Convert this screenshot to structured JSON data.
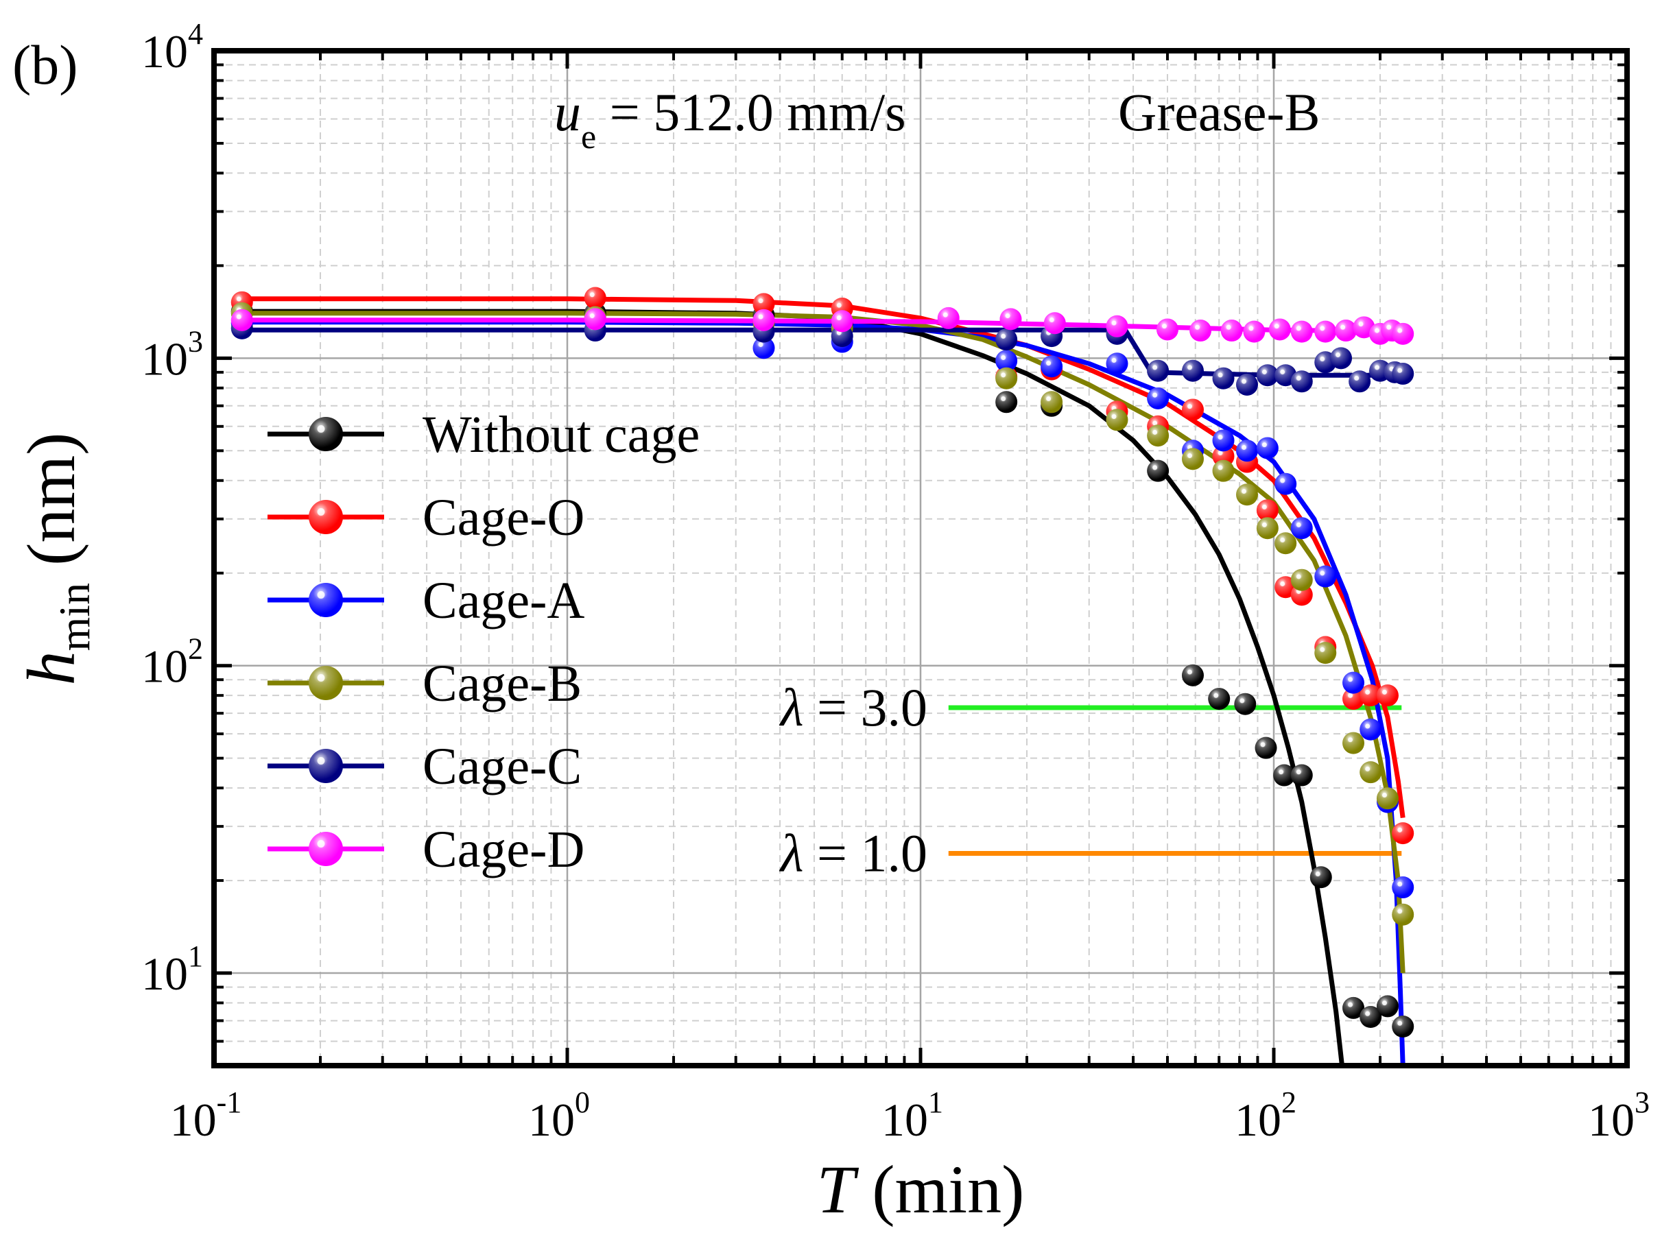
{
  "chart_data": {
    "type": "scatter",
    "panel_label": "(b)",
    "title": "",
    "annotations": {
      "speed_var": "u",
      "speed_sub": "e",
      "speed_text": " = 512.0 mm/s",
      "grease": "Grease-B",
      "lambda_symbol": "λ",
      "lambda_3_text": " = 3.0",
      "lambda_1_text": " = 1.0"
    },
    "xlabel": {
      "var": "T",
      "unit": " (min)"
    },
    "ylabel": {
      "var": "h",
      "sub": "min",
      "unit": " (nm)"
    },
    "x_scale": "log",
    "y_scale": "log",
    "xlim": [
      0.1,
      1000
    ],
    "ylim": [
      5,
      10000
    ],
    "grid": true,
    "legend_position": "center-left",
    "x_ticks": [
      {
        "base": "10",
        "exp": "-1"
      },
      {
        "base": "10",
        "exp": "0"
      },
      {
        "base": "10",
        "exp": "1"
      },
      {
        "base": "10",
        "exp": "2"
      },
      {
        "base": "10",
        "exp": "3"
      }
    ],
    "y_ticks": [
      {
        "base": "10",
        "exp": "1"
      },
      {
        "base": "10",
        "exp": "2"
      },
      {
        "base": "10",
        "exp": "3"
      },
      {
        "base": "10",
        "exp": "4"
      }
    ],
    "reference_lines": [
      {
        "name": "lambda-3",
        "y": 73,
        "x_range": [
          12,
          230
        ],
        "color": "#22ee22"
      },
      {
        "name": "lambda-1",
        "y": 24.5,
        "x_range": [
          12,
          230
        ],
        "color": "#ff8800"
      }
    ],
    "series": [
      {
        "name": "Without cage",
        "color": "#000000",
        "points": [
          [
            0.12,
            1420
          ],
          [
            1.2,
            1400
          ],
          [
            3.6,
            1380
          ],
          [
            6,
            1300
          ],
          [
            17.5,
            720
          ],
          [
            23.5,
            700
          ],
          [
            47,
            430
          ],
          [
            59,
            93
          ],
          [
            70,
            78
          ],
          [
            83,
            75
          ],
          [
            95,
            54
          ],
          [
            107,
            44
          ],
          [
            120,
            44
          ],
          [
            136,
            20.5
          ],
          [
            168,
            7.7
          ],
          [
            188,
            7.2
          ],
          [
            210,
            7.8
          ],
          [
            232,
            6.7
          ]
        ],
        "fit": [
          [
            0.12,
            1420
          ],
          [
            1,
            1420
          ],
          [
            3,
            1400
          ],
          [
            6,
            1350
          ],
          [
            10,
            1200
          ],
          [
            15,
            1020
          ],
          [
            20,
            890
          ],
          [
            30,
            700
          ],
          [
            40,
            540
          ],
          [
            50,
            410
          ],
          [
            60,
            310
          ],
          [
            70,
            230
          ],
          [
            80,
            165
          ],
          [
            90,
            115
          ],
          [
            100,
            80
          ],
          [
            110,
            54
          ],
          [
            120,
            36
          ],
          [
            130,
            22
          ],
          [
            140,
            13
          ],
          [
            150,
            7.5
          ],
          [
            156,
            5
          ]
        ]
      },
      {
        "name": "Cage-O",
        "color": "#ff0000",
        "points": [
          [
            0.12,
            1520
          ],
          [
            1.2,
            1570
          ],
          [
            3.6,
            1500
          ],
          [
            6,
            1450
          ],
          [
            17.5,
            870
          ],
          [
            23.5,
            920
          ],
          [
            36,
            670
          ],
          [
            47,
            600
          ],
          [
            59,
            680
          ],
          [
            72,
            480
          ],
          [
            84,
            460
          ],
          [
            96,
            320
          ],
          [
            108,
            180
          ],
          [
            120,
            170
          ],
          [
            140,
            115
          ],
          [
            168,
            78
          ],
          [
            188,
            80
          ],
          [
            210,
            80
          ],
          [
            232,
            28.5
          ]
        ],
        "fit": [
          [
            0.12,
            1560
          ],
          [
            1,
            1560
          ],
          [
            3,
            1540
          ],
          [
            6,
            1480
          ],
          [
            10,
            1350
          ],
          [
            15,
            1200
          ],
          [
            20,
            1100
          ],
          [
            30,
            920
          ],
          [
            50,
            710
          ],
          [
            80,
            500
          ],
          [
            100,
            400
          ],
          [
            130,
            260
          ],
          [
            160,
            160
          ],
          [
            190,
            100
          ],
          [
            210,
            68
          ],
          [
            225,
            42
          ],
          [
            232,
            32
          ]
        ]
      },
      {
        "name": "Cage-A",
        "color": "#0000ff",
        "points": [
          [
            0.12,
            1300
          ],
          [
            1.2,
            1240
          ],
          [
            3.6,
            1080
          ],
          [
            6,
            1130
          ],
          [
            17.5,
            980
          ],
          [
            23.5,
            940
          ],
          [
            36,
            960
          ],
          [
            47,
            740
          ],
          [
            59,
            500
          ],
          [
            72,
            540
          ],
          [
            84,
            500
          ],
          [
            96,
            510
          ],
          [
            108,
            390
          ],
          [
            120,
            280
          ],
          [
            140,
            195
          ],
          [
            168,
            88
          ],
          [
            188,
            62
          ],
          [
            210,
            36
          ],
          [
            232,
            19
          ]
        ],
        "fit": [
          [
            0.12,
            1310
          ],
          [
            1,
            1310
          ],
          [
            3,
            1300
          ],
          [
            6,
            1280
          ],
          [
            10,
            1240
          ],
          [
            15,
            1170
          ],
          [
            20,
            1100
          ],
          [
            30,
            960
          ],
          [
            50,
            760
          ],
          [
            80,
            560
          ],
          [
            100,
            460
          ],
          [
            130,
            300
          ],
          [
            160,
            170
          ],
          [
            190,
            90
          ],
          [
            210,
            50
          ],
          [
            222,
            20
          ],
          [
            228,
            9
          ],
          [
            232,
            5
          ]
        ]
      },
      {
        "name": "Cage-B",
        "color": "#808000",
        "points": [
          [
            0.12,
            1400
          ],
          [
            1.2,
            1360
          ],
          [
            3.6,
            1300
          ],
          [
            6,
            1250
          ],
          [
            17.5,
            860
          ],
          [
            23.5,
            720
          ],
          [
            36,
            630
          ],
          [
            47,
            560
          ],
          [
            59,
            470
          ],
          [
            72,
            430
          ],
          [
            84,
            360
          ],
          [
            96,
            280
          ],
          [
            108,
            250
          ],
          [
            120,
            190
          ],
          [
            140,
            110
          ],
          [
            168,
            56
          ],
          [
            188,
            45
          ],
          [
            210,
            37
          ],
          [
            232,
            15.5
          ]
        ],
        "fit": [
          [
            0.12,
            1400
          ],
          [
            1,
            1400
          ],
          [
            3,
            1390
          ],
          [
            6,
            1360
          ],
          [
            10,
            1280
          ],
          [
            15,
            1150
          ],
          [
            20,
            1010
          ],
          [
            30,
            820
          ],
          [
            50,
            600
          ],
          [
            80,
            420
          ],
          [
            100,
            340
          ],
          [
            130,
            220
          ],
          [
            160,
            125
          ],
          [
            190,
            65
          ],
          [
            210,
            38
          ],
          [
            225,
            20
          ],
          [
            232,
            10
          ]
        ]
      },
      {
        "name": "Cage-C",
        "color": "#000080",
        "points": [
          [
            0.12,
            1250
          ],
          [
            1.2,
            1230
          ],
          [
            3.6,
            1220
          ],
          [
            6,
            1180
          ],
          [
            17.5,
            1150
          ],
          [
            23.5,
            1180
          ],
          [
            36,
            1200
          ],
          [
            47,
            910
          ],
          [
            59,
            910
          ],
          [
            72,
            860
          ],
          [
            84,
            820
          ],
          [
            96,
            880
          ],
          [
            108,
            880
          ],
          [
            120,
            840
          ],
          [
            140,
            970
          ],
          [
            155,
            1000
          ],
          [
            175,
            840
          ],
          [
            200,
            910
          ],
          [
            220,
            900
          ],
          [
            232,
            890
          ]
        ],
        "fit": [
          [
            0.12,
            1235
          ],
          [
            1,
            1235
          ],
          [
            10,
            1235
          ],
          [
            30,
            1235
          ],
          [
            38,
            1235
          ],
          [
            45,
            900
          ],
          [
            100,
            880
          ],
          [
            232,
            880
          ]
        ]
      },
      {
        "name": "Cage-D",
        "color": "#ff00ff",
        "points": [
          [
            0.12,
            1330
          ],
          [
            1.2,
            1340
          ],
          [
            3.6,
            1330
          ],
          [
            6,
            1320
          ],
          [
            12,
            1350
          ],
          [
            18,
            1340
          ],
          [
            24,
            1300
          ],
          [
            36,
            1270
          ],
          [
            50,
            1240
          ],
          [
            62,
            1230
          ],
          [
            76,
            1230
          ],
          [
            88,
            1220
          ],
          [
            104,
            1240
          ],
          [
            120,
            1220
          ],
          [
            140,
            1220
          ],
          [
            160,
            1230
          ],
          [
            180,
            1260
          ],
          [
            200,
            1200
          ],
          [
            216,
            1230
          ],
          [
            232,
            1200
          ]
        ],
        "fit": [
          [
            0.12,
            1330
          ],
          [
            1,
            1330
          ],
          [
            10,
            1315
          ],
          [
            30,
            1280
          ],
          [
            100,
            1235
          ],
          [
            232,
            1220
          ]
        ]
      }
    ]
  }
}
